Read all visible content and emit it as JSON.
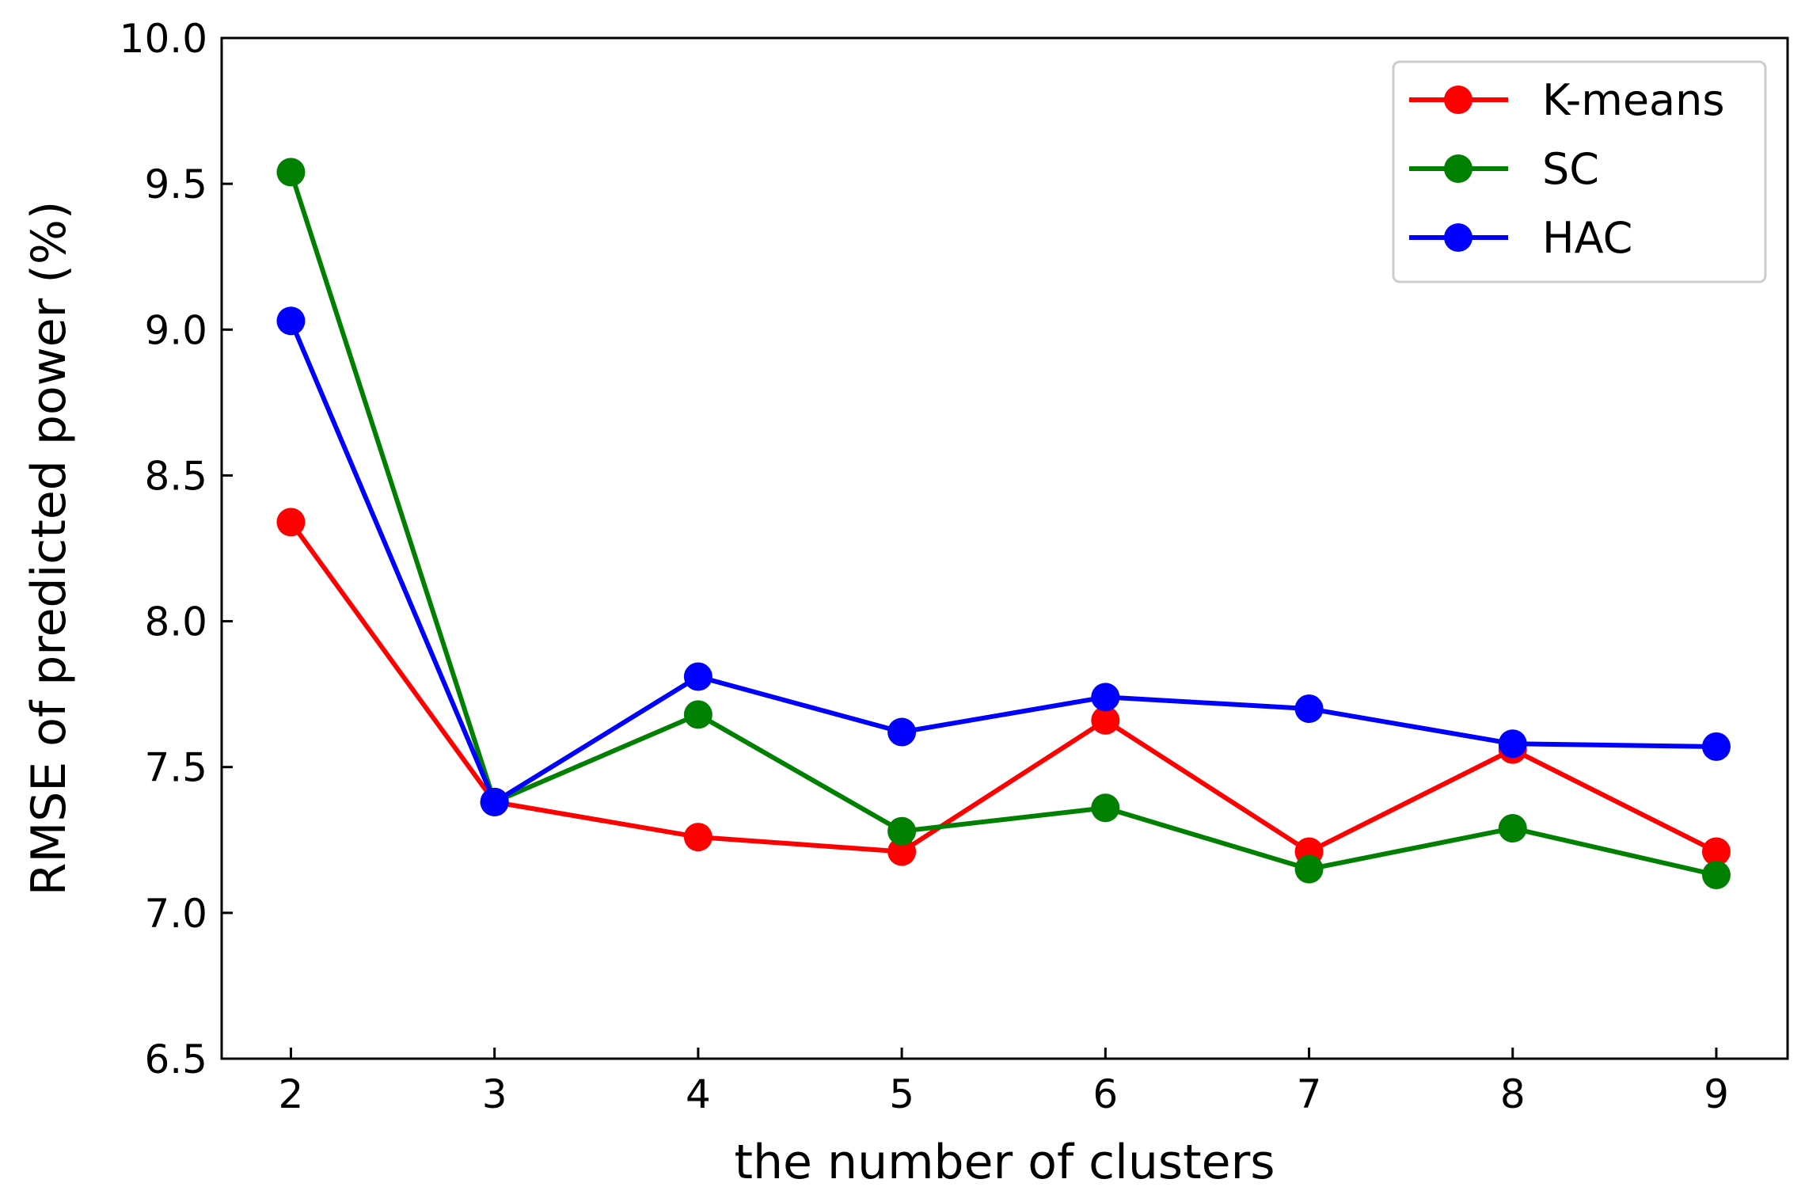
{
  "chart_data": {
    "type": "line",
    "title": "",
    "xlabel": "the number of clusters",
    "ylabel": "RMSE of predicted power (%)",
    "x": [
      2,
      3,
      4,
      5,
      6,
      7,
      8,
      9
    ],
    "x_tick_labels": [
      "2",
      "3",
      "4",
      "5",
      "6",
      "7",
      "8",
      "9"
    ],
    "xlim": [
      1.66,
      9.35
    ],
    "ylim": [
      6.5,
      10.0
    ],
    "y_ticks": [
      6.5,
      7.0,
      7.5,
      8.0,
      8.5,
      9.0,
      9.5,
      10.0
    ],
    "y_tick_labels": [
      "6.5",
      "7.0",
      "7.5",
      "8.0",
      "8.5",
      "9.0",
      "9.5",
      "10.0"
    ],
    "grid": false,
    "legend_position": "top-right",
    "series": [
      {
        "name": "K-means",
        "color": "#ff0000",
        "values": [
          8.34,
          7.38,
          7.26,
          7.21,
          7.66,
          7.21,
          7.56,
          7.21
        ]
      },
      {
        "name": "SC",
        "color": "#008000",
        "values": [
          9.54,
          7.38,
          7.68,
          7.28,
          7.36,
          7.15,
          7.29,
          7.13
        ]
      },
      {
        "name": "HAC",
        "color": "#0000ff",
        "values": [
          9.03,
          7.38,
          7.81,
          7.62,
          7.74,
          7.7,
          7.58,
          7.57
        ]
      }
    ]
  }
}
